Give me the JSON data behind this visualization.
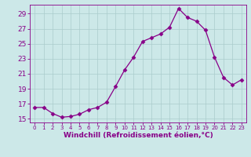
{
  "x": [
    0,
    1,
    2,
    3,
    4,
    5,
    6,
    7,
    8,
    9,
    10,
    11,
    12,
    13,
    14,
    15,
    16,
    17,
    18,
    19,
    20,
    21,
    22,
    23
  ],
  "y": [
    16.5,
    16.5,
    15.7,
    15.2,
    15.3,
    15.6,
    16.2,
    16.5,
    17.2,
    19.3,
    21.5,
    23.2,
    25.3,
    25.8,
    26.3,
    27.2,
    29.7,
    28.5,
    28.0,
    26.8,
    23.2,
    20.5,
    19.5,
    20.2
  ],
  "line_color": "#880088",
  "marker": "D",
  "marker_size": 2.5,
  "bg_color": "#cce8e8",
  "grid_color": "#aacccc",
  "xlabel": "Windchill (Refroidissement éolien,°C)",
  "xlabel_fontsize": 6.5,
  "tick_fontsize": 6,
  "ylim": [
    14.5,
    30.2
  ],
  "yticks": [
    15,
    17,
    19,
    21,
    23,
    25,
    27,
    29
  ],
  "xlim": [
    -0.5,
    23.5
  ],
  "xticks": [
    0,
    1,
    2,
    3,
    4,
    5,
    6,
    7,
    8,
    9,
    10,
    11,
    12,
    13,
    14,
    15,
    16,
    17,
    18,
    19,
    20,
    21,
    22,
    23
  ]
}
